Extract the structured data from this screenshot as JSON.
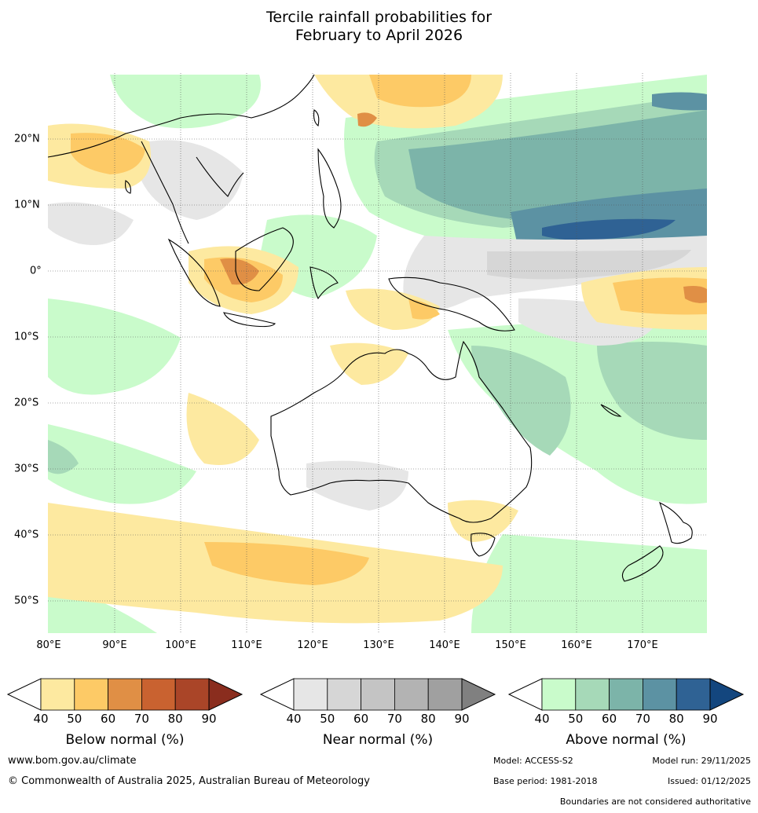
{
  "title": {
    "line1": "Tercile rainfall probabilities for",
    "line2": "February to April 2026"
  },
  "map": {
    "lon_labels": [
      "80°E",
      "90°E",
      "100°E",
      "110°E",
      "120°E",
      "130°E",
      "140°E",
      "150°E",
      "160°E",
      "170°E"
    ],
    "lat_labels": [
      "20°N",
      "10°N",
      "0°",
      "10°S",
      "20°S",
      "30°S",
      "40°S",
      "50°S"
    ],
    "grid": "dotted"
  },
  "legend": {
    "ticks": [
      "40",
      "50",
      "60",
      "70",
      "80",
      "90"
    ],
    "below": {
      "label": "Below normal (%)",
      "colors": [
        "#fde9a0",
        "#fdca66",
        "#e08f45",
        "#c96230",
        "#aa4528",
        "#8a2d1e"
      ]
    },
    "near": {
      "label": "Near normal (%)",
      "colors": [
        "#e6e6e6",
        "#d6d6d6",
        "#c4c4c4",
        "#b3b3b3",
        "#a0a0a0",
        "#808080"
      ]
    },
    "above": {
      "label": "Above normal (%)",
      "colors": [
        "#c9fbcb",
        "#a6d9b8",
        "#7cb4a9",
        "#5c92a3",
        "#2f6294",
        "#13467e"
      ]
    }
  },
  "footer": {
    "website": "www.bom.gov.au/climate",
    "copyright": "© Commonwealth of Australia 2025, Australian Bureau of Meteorology",
    "model": "Model: ACCESS-S2",
    "model_run": "Model run: 29/11/2025",
    "base_period": "Base period: 1981-2018",
    "issued": "Issued: 01/12/2025",
    "disclaimer": "Boundaries are not considered authoritative"
  }
}
